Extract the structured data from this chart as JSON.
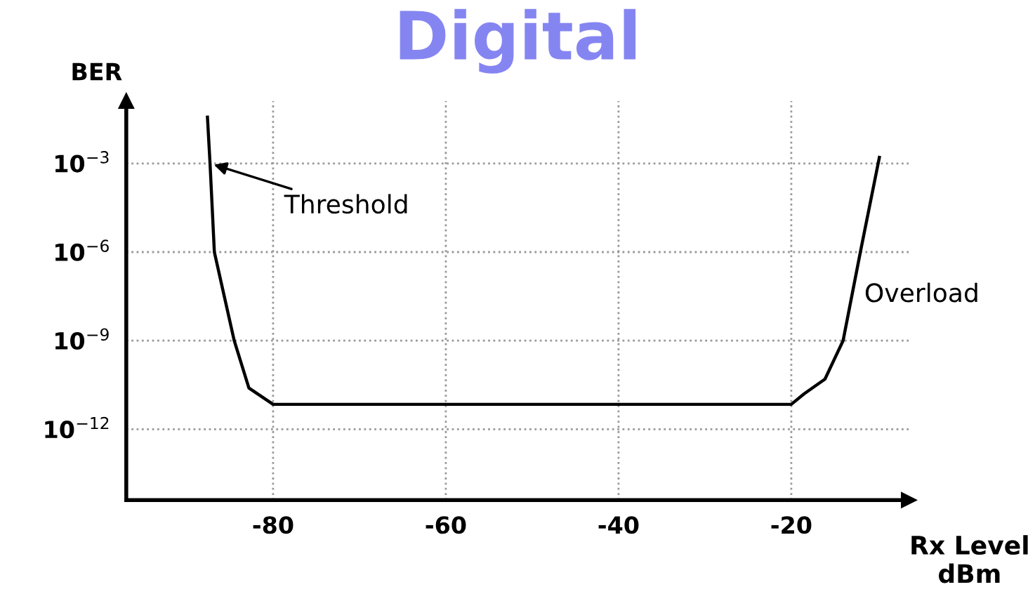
{
  "chart_data": {
    "type": "line",
    "title": "Digital",
    "ylabel": "BER",
    "xlabel": "Rx Level\ndBm",
    "log": "y",
    "grid": true,
    "marker": "none",
    "line_style": "solid",
    "xlim": [
      -97,
      -6.4
    ],
    "xticks": [
      -80,
      -60,
      -40,
      -20
    ],
    "ylim": [
      4e-15,
      0.13
    ],
    "yticks": [
      {
        "value": 0.001,
        "label": "10$^{−3}$"
      },
      {
        "value": 1e-06,
        "label": "10$^{−6}$"
      },
      {
        "value": 1e-09,
        "label": "10$^{−9}$"
      },
      {
        "value": 1e-12,
        "label": "10$^{−12}$"
      }
    ],
    "series": [
      {
        "color": "#000000",
        "x": [
          -87.6,
          -87.3,
          -86.8,
          -84.5,
          -82.8,
          -80,
          -20,
          -18.5,
          -16.1,
          -14.0,
          -12.0,
          -9.8
        ],
        "values": [
          0.037,
          0.001,
          1e-06,
          1e-09,
          2.5e-11,
          7e-12,
          7e-12,
          1.6e-11,
          5e-11,
          1e-09,
          1e-06,
          0.0016
        ]
      }
    ],
    "annotations": [
      {
        "text": "Threshold",
        "x": -87.3,
        "y": 0.001
      },
      {
        "text": "Overload",
        "x": -12.0,
        "y": 1e-06
      }
    ]
  }
}
